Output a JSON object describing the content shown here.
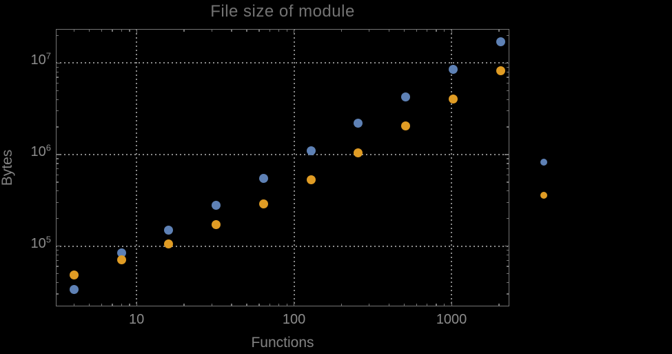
{
  "title": "File size of module",
  "axis": {
    "xlabel": "Functions",
    "ylabel": "Bytes"
  },
  "legend": {
    "labels_visible": false,
    "markers": [
      {
        "series": "series-1",
        "color": "#5E81B5"
      },
      {
        "series": "series-2",
        "color": "#E09C24"
      }
    ]
  },
  "colors": {
    "background": "#000000",
    "frame": "#757575",
    "grid": "#8c8c8c",
    "tick_label": "#8c8c8c",
    "axis_label": "#828282",
    "title": "#737373",
    "series_blue": "#5E81B5",
    "series_orange": "#E09C24"
  },
  "chart_data": {
    "type": "scatter",
    "title": "File size of module",
    "xlabel": "Functions",
    "ylabel": "Bytes",
    "x_scale": "log",
    "y_scale": "log",
    "xlim": [
      3.07,
      2330
    ],
    "ylim": [
      21900,
      23500000
    ],
    "grid": true,
    "x": [
      4,
      8,
      16,
      32,
      64,
      128,
      256,
      512,
      1024,
      2048
    ],
    "series": [
      {
        "name": "series-1",
        "color": "#5E81B5",
        "values": [
          33700,
          84700,
          150000,
          280000,
          545000,
          1100000,
          2180000,
          4220000,
          8550000,
          17000000
        ]
      },
      {
        "name": "series-2",
        "color": "#E09C24",
        "values": [
          48200,
          70700,
          106000,
          170000,
          287000,
          533000,
          1040000,
          2040000,
          4060000,
          8200000
        ]
      }
    ],
    "x_major_ticks": [
      {
        "value": 10,
        "label": "10"
      },
      {
        "value": 100,
        "label": "100"
      },
      {
        "value": 1000,
        "label": "1000"
      }
    ],
    "y_major_ticks": [
      {
        "value": 100000,
        "base": "10",
        "exp": "5"
      },
      {
        "value": 1000000,
        "base": "10",
        "exp": "6"
      },
      {
        "value": 10000000,
        "base": "10",
        "exp": "7"
      }
    ],
    "x_minor_ticks": [
      4,
      5,
      6,
      7,
      8,
      9,
      20,
      30,
      40,
      50,
      60,
      70,
      80,
      90,
      200,
      300,
      400,
      500,
      600,
      700,
      800,
      900,
      2000
    ],
    "y_minor_ticks": [
      30000,
      40000,
      50000,
      60000,
      70000,
      80000,
      90000,
      200000,
      300000,
      400000,
      500000,
      600000,
      700000,
      800000,
      900000,
      2000000,
      3000000,
      4000000,
      5000000,
      6000000,
      7000000,
      8000000,
      9000000,
      20000000
    ],
    "gridlines": {
      "x": [
        10,
        100,
        1000
      ],
      "y": [
        100000,
        1000000,
        10000000
      ],
      "style": "dotted"
    },
    "legend_position": "right-of-frame"
  }
}
